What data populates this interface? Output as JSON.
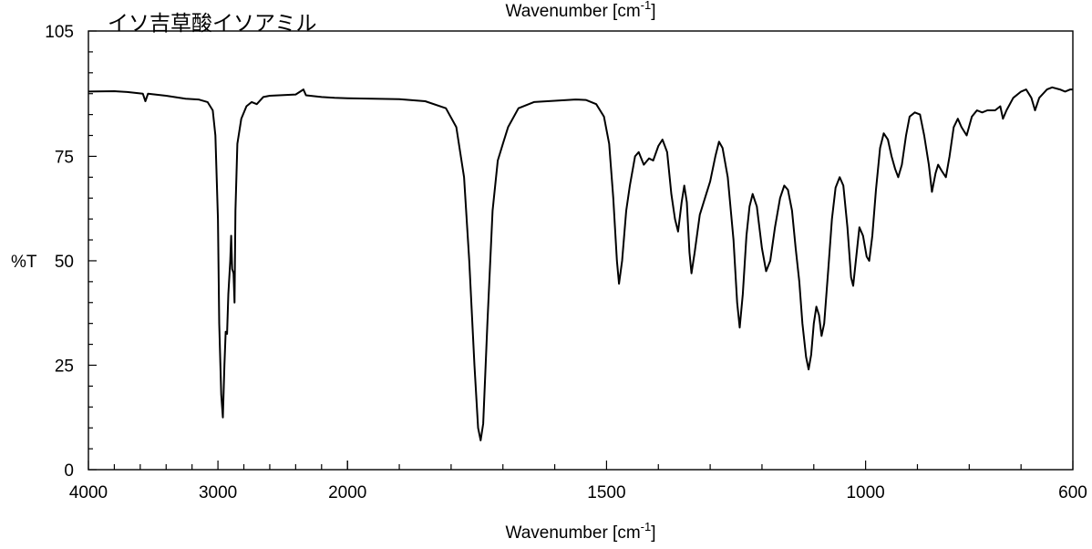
{
  "chart_data": {
    "type": "line",
    "title": "イソ吉草酸イソアミル",
    "top_label": "Wavenumber [cm",
    "top_label_sup": "-1",
    "top_label_close": "]",
    "xlabel": "Wavenumber [cm",
    "xlabel_sup": "-1",
    "xlabel_close": "]",
    "ylabel": "%T",
    "xlim": [
      4000,
      600
    ],
    "ylim": [
      0,
      105
    ],
    "x_scale": "piecewise: 4000-2000 compressed, 2000-600 expanded",
    "x_breakpoints": [
      {
        "wn": 4000,
        "frac": 0.0
      },
      {
        "wn": 3000,
        "frac": 0.125
      },
      {
        "wn": 2000,
        "frac": 0.25
      },
      {
        "wn": 1500,
        "frac": 0.5
      },
      {
        "wn": 1000,
        "frac": 0.75
      },
      {
        "wn": 600,
        "frac": 0.95
      }
    ],
    "x_tick_labels": [
      "4000",
      "3000",
      "2000",
      "1500",
      "1000",
      "600"
    ],
    "x_ticks": [
      4000,
      3000,
      2000,
      1500,
      1000,
      600
    ],
    "y_tick_labels": [
      "0",
      "25",
      "50",
      "75",
      "105"
    ],
    "y_ticks": [
      0,
      25,
      50,
      75,
      105
    ],
    "grid": false,
    "series": [
      {
        "color": "#000000",
        "points": [
          [
            4000,
            90.5
          ],
          [
            3800,
            90.6
          ],
          [
            3700,
            90.4
          ],
          [
            3580,
            90.0
          ],
          [
            3560,
            88.2
          ],
          [
            3540,
            90.0
          ],
          [
            3400,
            89.5
          ],
          [
            3250,
            88.8
          ],
          [
            3150,
            88.6
          ],
          [
            3080,
            88.0
          ],
          [
            3040,
            86.0
          ],
          [
            3020,
            80.0
          ],
          [
            3000,
            60.0
          ],
          [
            2990,
            35.0
          ],
          [
            2975,
            18.0
          ],
          [
            2962,
            12.5
          ],
          [
            2950,
            25.0
          ],
          [
            2940,
            33.0
          ],
          [
            2930,
            32.5
          ],
          [
            2920,
            42.0
          ],
          [
            2905,
            50.0
          ],
          [
            2898,
            56.0
          ],
          [
            2890,
            48.0
          ],
          [
            2880,
            47.0
          ],
          [
            2872,
            40.0
          ],
          [
            2865,
            62.0
          ],
          [
            2850,
            78.0
          ],
          [
            2820,
            84.0
          ],
          [
            2780,
            87.0
          ],
          [
            2740,
            88.0
          ],
          [
            2700,
            87.5
          ],
          [
            2650,
            89.2
          ],
          [
            2600,
            89.5
          ],
          [
            2400,
            89.8
          ],
          [
            2340,
            91.0
          ],
          [
            2320,
            89.6
          ],
          [
            2200,
            89.2
          ],
          [
            2100,
            89.0
          ],
          [
            2000,
            88.9
          ],
          [
            1900,
            88.7
          ],
          [
            1850,
            88.2
          ],
          [
            1810,
            86.5
          ],
          [
            1790,
            82.0
          ],
          [
            1775,
            70.0
          ],
          [
            1765,
            50.0
          ],
          [
            1755,
            25.0
          ],
          [
            1748,
            10.0
          ],
          [
            1743,
            7.0
          ],
          [
            1738,
            11.0
          ],
          [
            1730,
            35.0
          ],
          [
            1720,
            62.0
          ],
          [
            1710,
            74.0
          ],
          [
            1700,
            78.0
          ],
          [
            1690,
            82.0
          ],
          [
            1670,
            86.5
          ],
          [
            1640,
            88.0
          ],
          [
            1600,
            88.3
          ],
          [
            1560,
            88.6
          ],
          [
            1540,
            88.5
          ],
          [
            1520,
            87.5
          ],
          [
            1505,
            84.5
          ],
          [
            1495,
            78.0
          ],
          [
            1487,
            65.0
          ],
          [
            1480,
            50.0
          ],
          [
            1476,
            44.5
          ],
          [
            1470,
            50.0
          ],
          [
            1462,
            62.0
          ],
          [
            1455,
            68.0
          ],
          [
            1445,
            75.0
          ],
          [
            1438,
            76.0
          ],
          [
            1428,
            73.0
          ],
          [
            1418,
            74.5
          ],
          [
            1410,
            74.0
          ],
          [
            1400,
            77.5
          ],
          [
            1392,
            79.0
          ],
          [
            1383,
            76.0
          ],
          [
            1375,
            66.0
          ],
          [
            1368,
            60.0
          ],
          [
            1362,
            57.0
          ],
          [
            1355,
            64.0
          ],
          [
            1350,
            68.0
          ],
          [
            1345,
            64.0
          ],
          [
            1340,
            52.0
          ],
          [
            1336,
            47.0
          ],
          [
            1330,
            52.0
          ],
          [
            1320,
            61.0
          ],
          [
            1310,
            65.0
          ],
          [
            1300,
            69.0
          ],
          [
            1290,
            75.0
          ],
          [
            1283,
            78.5
          ],
          [
            1276,
            77.0
          ],
          [
            1266,
            70.0
          ],
          [
            1255,
            55.0
          ],
          [
            1248,
            40.0
          ],
          [
            1243,
            34.0
          ],
          [
            1237,
            42.0
          ],
          [
            1230,
            56.0
          ],
          [
            1224,
            63.0
          ],
          [
            1218,
            66.0
          ],
          [
            1210,
            63.0
          ],
          [
            1200,
            53.0
          ],
          [
            1192,
            47.5
          ],
          [
            1184,
            50.0
          ],
          [
            1175,
            58.0
          ],
          [
            1165,
            65.0
          ],
          [
            1157,
            68.0
          ],
          [
            1150,
            67.0
          ],
          [
            1142,
            62.0
          ],
          [
            1135,
            53.0
          ],
          [
            1128,
            45.0
          ],
          [
            1122,
            35.0
          ],
          [
            1115,
            27.0
          ],
          [
            1110,
            24.0
          ],
          [
            1105,
            27.5
          ],
          [
            1100,
            35.0
          ],
          [
            1095,
            39.0
          ],
          [
            1090,
            37.0
          ],
          [
            1085,
            32.0
          ],
          [
            1080,
            35.0
          ],
          [
            1072,
            48.0
          ],
          [
            1065,
            60.0
          ],
          [
            1058,
            67.5
          ],
          [
            1050,
            70.0
          ],
          [
            1043,
            68.0
          ],
          [
            1035,
            58.0
          ],
          [
            1028,
            46.0
          ],
          [
            1024,
            44.0
          ],
          [
            1018,
            51.0
          ],
          [
            1012,
            58.0
          ],
          [
            1005,
            56.0
          ],
          [
            998,
            51.0
          ],
          [
            993,
            50.0
          ],
          [
            987,
            56.0
          ],
          [
            980,
            67.0
          ],
          [
            972,
            77.0
          ],
          [
            965,
            80.5
          ],
          [
            957,
            79.0
          ],
          [
            950,
            75.0
          ],
          [
            943,
            72.0
          ],
          [
            937,
            70.0
          ],
          [
            930,
            73.0
          ],
          [
            922,
            80.0
          ],
          [
            915,
            84.5
          ],
          [
            905,
            85.5
          ],
          [
            895,
            85.0
          ],
          [
            887,
            80.0
          ],
          [
            878,
            73.0
          ],
          [
            872,
            66.5
          ],
          [
            865,
            71.0
          ],
          [
            860,
            73.0
          ],
          [
            853,
            71.5
          ],
          [
            845,
            70.0
          ],
          [
            838,
            75.0
          ],
          [
            830,
            82.0
          ],
          [
            822,
            84.0
          ],
          [
            815,
            82.0
          ],
          [
            805,
            80.0
          ],
          [
            795,
            84.5
          ],
          [
            785,
            86.0
          ],
          [
            775,
            85.5
          ],
          [
            765,
            86.0
          ],
          [
            750,
            86.0
          ],
          [
            740,
            87.0
          ],
          [
            735,
            84.0
          ],
          [
            728,
            86.0
          ],
          [
            715,
            89.0
          ],
          [
            700,
            90.5
          ],
          [
            690,
            91.0
          ],
          [
            680,
            89.0
          ],
          [
            673,
            86.0
          ],
          [
            665,
            89.0
          ],
          [
            650,
            91.0
          ],
          [
            640,
            91.5
          ],
          [
            625,
            91.0
          ],
          [
            615,
            90.5
          ],
          [
            605,
            91.0
          ],
          [
            600,
            91.0
          ]
        ]
      }
    ]
  }
}
